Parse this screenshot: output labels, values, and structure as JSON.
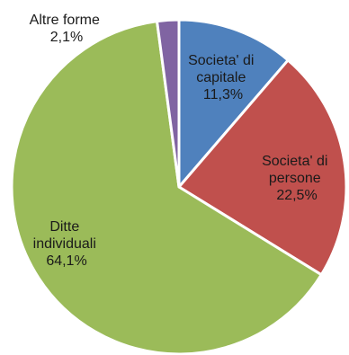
{
  "chart_data": {
    "type": "pie",
    "title": "",
    "slices": [
      {
        "label_lines": [
          "Societa' di",
          "capitale"
        ],
        "value_text": "11,3%",
        "value": 11.3,
        "color": "#4f81bd"
      },
      {
        "label_lines": [
          "Societa' di",
          "persone"
        ],
        "value_text": "22,5%",
        "value": 22.5,
        "color": "#c0504d"
      },
      {
        "label_lines": [
          "Ditte",
          "individuali"
        ],
        "value_text": "64,1%",
        "value": 64.1,
        "color": "#9bbb59"
      },
      {
        "label_lines": [
          "Altre forme"
        ],
        "value_text": "2,1%",
        "value": 2.1,
        "color": "#8064a2"
      }
    ],
    "start": "top",
    "direction": "clockwise",
    "legend": "none"
  }
}
